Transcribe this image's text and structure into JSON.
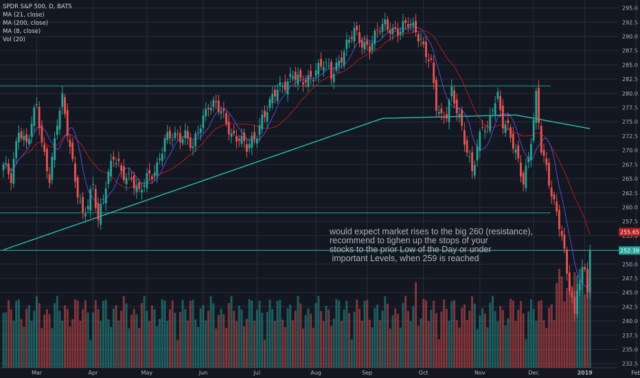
{
  "legend": {
    "symbol": "SPDR S&P 500, D, BATS",
    "ma21": "MA (21, close)",
    "ma200": "MA (200, close)",
    "ma8": "MA (8, close)",
    "vol": "Vol (20)"
  },
  "annotation": "would expect market rises to the big 260 (resistance),\nrecommend to tighen up the stops of your\nstocks to the prior Low of the Day or under\n important Levels, when 259 is reached",
  "price_labels": {
    "ma21": "255.65",
    "last": "252.39"
  },
  "colors": {
    "background": "#131722",
    "grid": "#2a2e39",
    "up": "#26a69a",
    "down": "#ef5350",
    "ma200": "#27c2b0",
    "ma21": "#b71c1c",
    "ma8": "#5c4bd6",
    "hline": "#26a69a",
    "axis_text": "#b2b5be"
  },
  "chart_data": {
    "type": "candlestick",
    "title": "SPDR S&P 500, D, BATS",
    "y_ticks": [
      232.5,
      235.0,
      237.5,
      240.0,
      242.5,
      245.0,
      247.5,
      250.0,
      252.5,
      255.0,
      257.5,
      260.0,
      262.5,
      265.0,
      267.5,
      270.0,
      272.5,
      275.0,
      277.5,
      280.0,
      282.5,
      285.0,
      287.5,
      290.0,
      292.5,
      295.0
    ],
    "ylim": [
      231.8,
      296.4
    ],
    "x_ticks": [
      "Mar",
      "Apr",
      "May",
      "Jun",
      "Jul",
      "Aug",
      "Sep",
      "Oct",
      "Nov",
      "Dec",
      "2019",
      "Feb"
    ],
    "x_tick_index": [
      13,
      35,
      56,
      78,
      99,
      122,
      142,
      164,
      186,
      207,
      227,
      247
    ],
    "n_bars": 230,
    "horizontal_levels": [
      281.3,
      259.0,
      252.4
    ],
    "key_points": [
      {
        "i": 0,
        "close": 267.5
      },
      {
        "i": 3,
        "close": 264.5
      },
      {
        "i": 6,
        "close": 274.0
      },
      {
        "i": 9,
        "close": 271.5
      },
      {
        "i": 13,
        "close": 277.6
      },
      {
        "i": 15,
        "close": 271.0
      },
      {
        "i": 18,
        "close": 265.5
      },
      {
        "i": 21,
        "close": 275.0
      },
      {
        "i": 23,
        "close": 278.5
      },
      {
        "i": 26,
        "close": 270.5
      },
      {
        "i": 29,
        "close": 263.0
      },
      {
        "i": 31,
        "close": 258.5
      },
      {
        "i": 33,
        "close": 260.0
      },
      {
        "i": 35,
        "close": 263.5
      },
      {
        "i": 37,
        "close": 258.0
      },
      {
        "i": 40,
        "close": 264.5
      },
      {
        "i": 43,
        "close": 268.5
      },
      {
        "i": 46,
        "close": 266.0
      },
      {
        "i": 50,
        "close": 265.5
      },
      {
        "i": 53,
        "close": 262.0
      },
      {
        "i": 56,
        "close": 265.0
      },
      {
        "i": 60,
        "close": 267.5
      },
      {
        "i": 63,
        "close": 271.5
      },
      {
        "i": 67,
        "close": 272.5
      },
      {
        "i": 71,
        "close": 273.0
      },
      {
        "i": 74,
        "close": 270.0
      },
      {
        "i": 77,
        "close": 274.5
      },
      {
        "i": 80,
        "close": 278.5
      },
      {
        "i": 83,
        "close": 278.0
      },
      {
        "i": 86,
        "close": 275.5
      },
      {
        "i": 89,
        "close": 273.0
      },
      {
        "i": 92,
        "close": 272.5
      },
      {
        "i": 95,
        "close": 270.0
      },
      {
        "i": 98,
        "close": 272.0
      },
      {
        "i": 101,
        "close": 276.0
      },
      {
        "i": 104,
        "close": 278.0
      },
      {
        "i": 107,
        "close": 280.5
      },
      {
        "i": 110,
        "close": 282.0
      },
      {
        "i": 113,
        "close": 283.5
      },
      {
        "i": 116,
        "close": 281.5
      },
      {
        "i": 119,
        "close": 282.5
      },
      {
        "i": 122,
        "close": 284.5
      },
      {
        "i": 125,
        "close": 285.0
      },
      {
        "i": 128,
        "close": 283.0
      },
      {
        "i": 131,
        "close": 286.0
      },
      {
        "i": 134,
        "close": 288.5
      },
      {
        "i": 137,
        "close": 290.5
      },
      {
        "i": 140,
        "close": 289.0
      },
      {
        "i": 143,
        "close": 288.5
      },
      {
        "i": 146,
        "close": 290.5
      },
      {
        "i": 149,
        "close": 292.0
      },
      {
        "i": 152,
        "close": 291.5
      },
      {
        "i": 155,
        "close": 291.0
      },
      {
        "i": 158,
        "close": 292.0
      },
      {
        "i": 161,
        "close": 291.5
      },
      {
        "i": 163,
        "close": 289.5
      },
      {
        "i": 165,
        "close": 287.0
      },
      {
        "i": 167,
        "close": 284.5
      },
      {
        "i": 169,
        "close": 277.5
      },
      {
        "i": 171,
        "close": 276.0
      },
      {
        "i": 173,
        "close": 277.0
      },
      {
        "i": 175,
        "close": 280.5
      },
      {
        "i": 177,
        "close": 276.5
      },
      {
        "i": 179,
        "close": 273.5
      },
      {
        "i": 181,
        "close": 270.0
      },
      {
        "i": 183,
        "close": 267.0
      },
      {
        "i": 185,
        "close": 270.5
      },
      {
        "i": 187,
        "close": 274.0
      },
      {
        "i": 189,
        "close": 273.0
      },
      {
        "i": 191,
        "close": 278.0
      },
      {
        "i": 193,
        "close": 280.0
      },
      {
        "i": 195,
        "close": 275.0
      },
      {
        "i": 197,
        "close": 273.5
      },
      {
        "i": 199,
        "close": 270.5
      },
      {
        "i": 201,
        "close": 268.0
      },
      {
        "i": 203,
        "close": 265.0
      },
      {
        "i": 205,
        "close": 269.0
      },
      {
        "i": 207,
        "close": 275.0
      },
      {
        "i": 208,
        "close": 279.0
      },
      {
        "i": 210,
        "close": 270.0
      },
      {
        "i": 212,
        "close": 267.0
      },
      {
        "i": 214,
        "close": 263.0
      },
      {
        "i": 216,
        "close": 259.0
      },
      {
        "i": 218,
        "close": 254.5
      },
      {
        "i": 220,
        "close": 248.0
      },
      {
        "i": 222,
        "close": 244.0
      },
      {
        "i": 223,
        "close": 241.0
      },
      {
        "i": 224,
        "close": 246.5
      },
      {
        "i": 226,
        "close": 249.0
      },
      {
        "i": 227,
        "close": 248.5
      },
      {
        "i": 228,
        "close": 245.5
      },
      {
        "i": 229,
        "close": 252.4
      }
    ]
  }
}
